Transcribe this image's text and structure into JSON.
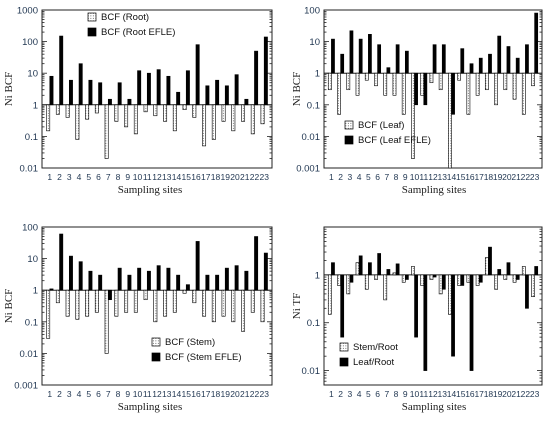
{
  "chart_data": [
    {
      "type": "bar",
      "panel": "top-left",
      "xlabel": "Sampling sites",
      "ylabel": "Ni BCF",
      "yscale": "log",
      "ylim": [
        0.01,
        1000
      ],
      "baseline": 1,
      "grid": false,
      "legend_position": "top-left",
      "categories": [
        "1",
        "2",
        "3",
        "4",
        "5",
        "6",
        "7",
        "8",
        "9",
        "10",
        "11",
        "12",
        "13",
        "14",
        "15",
        "16",
        "17",
        "18",
        "19",
        "20",
        "21",
        "22",
        "23"
      ],
      "y_tick_labels": [
        "0.01",
        "0.1",
        "1",
        "10",
        "100",
        "1000"
      ],
      "series": [
        {
          "name": "BCF (Root)",
          "style": "dotted",
          "values": [
            0.15,
            0.5,
            0.4,
            0.08,
            0.35,
            0.55,
            0.02,
            0.3,
            0.2,
            0.12,
            0.6,
            0.45,
            0.3,
            0.15,
            0.7,
            0.4,
            0.05,
            0.08,
            0.3,
            0.15,
            0.3,
            0.12,
            0.25
          ]
        },
        {
          "name": "BCF (Root EFLE)",
          "style": "solid",
          "values": [
            8,
            150,
            6,
            20,
            6,
            5,
            1.5,
            5,
            1.5,
            12,
            10,
            13,
            8,
            2.5,
            12,
            80,
            4,
            6,
            4,
            9,
            1.5,
            50,
            140
          ]
        }
      ]
    },
    {
      "type": "bar",
      "panel": "top-right",
      "xlabel": "Sampling sites",
      "ylabel": "Ni BCF",
      "yscale": "log",
      "ylim": [
        0.001,
        100
      ],
      "baseline": 1,
      "grid": false,
      "legend_position": "bottom-center",
      "categories": [
        "1",
        "2",
        "3",
        "4",
        "5",
        "6",
        "7",
        "8",
        "9",
        "10",
        "11",
        "12",
        "13",
        "14",
        "15",
        "16",
        "17",
        "18",
        "19",
        "20",
        "21",
        "22",
        "23"
      ],
      "y_tick_labels": [
        "0.001",
        "0.01",
        "0.1",
        "1",
        "10",
        "100"
      ],
      "series": [
        {
          "name": "BCF (Leaf)",
          "style": "dotted",
          "values": [
            0.3,
            0.05,
            0.3,
            0.2,
            0.6,
            0.4,
            0.2,
            0.2,
            0.05,
            0.002,
            0.2,
            0.5,
            0.3,
            0.001,
            0.6,
            0.05,
            0.2,
            0.3,
            0.1,
            0.3,
            0.15,
            0.05,
            0.4
          ]
        },
        {
          "name": "BCF (Leaf EFLE)",
          "style": "solid",
          "values": [
            12,
            4,
            22,
            12,
            17,
            8,
            1.5,
            8,
            5,
            0.1,
            0.1,
            8,
            8,
            0.05,
            6,
            2,
            3,
            4,
            15,
            7,
            3,
            8,
            80
          ]
        }
      ]
    },
    {
      "type": "bar",
      "panel": "bottom-left",
      "xlabel": "Sampling sites",
      "ylabel": "Ni BCF",
      "yscale": "log",
      "ylim": [
        0.001,
        100
      ],
      "baseline": 1,
      "grid": false,
      "legend_position": "bottom-right",
      "categories": [
        "1",
        "2",
        "3",
        "4",
        "5",
        "6",
        "7",
        "8",
        "9",
        "10",
        "11",
        "12",
        "13",
        "14",
        "15",
        "16",
        "17",
        "18",
        "19",
        "20",
        "21",
        "22",
        "23"
      ],
      "y_tick_labels": [
        "0.001",
        "0.01",
        "0.1",
        "1",
        "10",
        "100"
      ],
      "series": [
        {
          "name": "BCF (Stem)",
          "style": "dotted",
          "values": [
            0.03,
            0.4,
            0.15,
            0.12,
            0.15,
            0.2,
            0.01,
            0.15,
            0.2,
            0.2,
            0.5,
            0.1,
            0.15,
            0.2,
            0.8,
            0.4,
            0.15,
            0.1,
            0.15,
            0.1,
            0.05,
            0.2,
            0.1
          ]
        },
        {
          "name": "BCF (Stem EFLE)",
          "style": "solid",
          "values": [
            1.1,
            60,
            12,
            8,
            4,
            3,
            0.5,
            5,
            3,
            5,
            4,
            6,
            5,
            3,
            1.5,
            35,
            3,
            3,
            5,
            6,
            4,
            50,
            15
          ]
        }
      ]
    },
    {
      "type": "bar",
      "panel": "bottom-right",
      "xlabel": "Sampling sites",
      "ylabel": "Ni TF",
      "yscale": "log",
      "ylim": [
        0.005,
        10
      ],
      "baseline": 1,
      "grid": false,
      "legend_position": "bottom-left",
      "categories": [
        "1",
        "2",
        "3",
        "4",
        "5",
        "6",
        "7",
        "8",
        "9",
        "10",
        "11",
        "12",
        "13",
        "14",
        "15",
        "16",
        "17",
        "18",
        "19",
        "20",
        "21",
        "22",
        "23"
      ],
      "y_tick_labels": [
        "0.01",
        "0.1",
        "1"
      ],
      "series": [
        {
          "name": "Stem/Root",
          "style": "dotted",
          "values": [
            0.15,
            0.6,
            0.4,
            1.8,
            0.5,
            0.8,
            0.3,
            1.1,
            0.7,
            1.5,
            0.6,
            0.8,
            0.4,
            0.15,
            0.6,
            0.7,
            0.6,
            2.3,
            0.5,
            0.8,
            0.7,
            1.5,
            0.35
          ]
        },
        {
          "name": "Leaf/Root",
          "style": "solid",
          "values": [
            1.8,
            0.05,
            0.7,
            2.5,
            1.8,
            2.8,
            1.3,
            1.7,
            0.8,
            0.05,
            0.01,
            0.9,
            0.5,
            0.02,
            0.6,
            0.01,
            0.7,
            3.8,
            1.3,
            1.8,
            0.8,
            0.2,
            1.5
          ]
        }
      ]
    }
  ]
}
